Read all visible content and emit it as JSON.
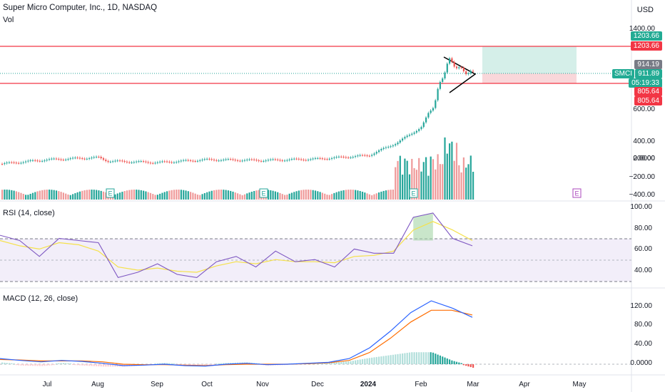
{
  "header": {
    "title": "Super Micro Computer, Inc., 1D, NASDAQ",
    "vol_label": "Vol",
    "currency": "USD"
  },
  "colors": {
    "up": "#26a69a",
    "down": "#ef9a9a",
    "resistance": "#f23645",
    "support": "#f23645",
    "rsi": "#7e57c2",
    "rsi_ma": "#f5e14a",
    "macd": "#2962ff",
    "signal": "#ff6d00"
  },
  "price_tags": [
    {
      "label": "1203.66",
      "color": "#22ab94"
    },
    {
      "label": "1203.66",
      "color": "#f23645"
    },
    {
      "label": "914.19",
      "color": "#787b86"
    },
    {
      "label": "911.89",
      "color": "#22ab94"
    },
    {
      "label": "05:19:33",
      "color": "#22ab94"
    },
    {
      "label": "805.64",
      "color": "#f23645"
    },
    {
      "label": "805.64",
      "color": "#f23645"
    }
  ],
  "ticker_label": "SMCI",
  "earnings_marker": "E",
  "panels": {
    "rsi_label": "RSI (14, close)",
    "macd_label": "MACD (12, 26, close)"
  },
  "chart_data": [
    {
      "type": "candlestick",
      "title": "Super Micro Computer, Inc., 1D, NASDAQ",
      "x_ticks": [
        "Jul",
        "Aug",
        "Sep",
        "Oct",
        "Nov",
        "Dec",
        "2024",
        "Feb",
        "Mar",
        "Apr",
        "May"
      ],
      "y_ticks": [
        1400,
        600,
        400,
        200,
        0,
        -200,
        -400
      ],
      "y_tick_labels": [
        "1400.00",
        "600.00",
        "400.00",
        "200.00",
        "0.0000",
        "−200.00",
        "−400.00"
      ],
      "horizontal_levels": [
        1203.66,
        805.64
      ],
      "last_price": 911.89,
      "series": [
        {
          "name": "Close (approx.)",
          "points": [
            [
              "Jun",
              240
            ],
            [
              "Jul",
              270
            ],
            [
              "Aug",
              285
            ],
            [
              "Aug",
              260
            ],
            [
              "Sep",
              250
            ],
            [
              "Oct",
              270
            ],
            [
              "Nov",
              265
            ],
            [
              "Dec",
              275
            ],
            [
              "2024",
              300
            ],
            [
              "Jan",
              390
            ],
            [
              "Feb",
              500
            ],
            [
              "Feb",
              700
            ],
            [
              "Feb",
              1050
            ],
            [
              "Feb",
              930
            ],
            [
              "Mar",
              912
            ]
          ]
        }
      ]
    },
    {
      "type": "line",
      "title": "RSI (14, close)",
      "y_ticks": [
        100,
        80,
        60,
        40
      ],
      "y_tick_labels": [
        "100.00",
        "80.00",
        "60.00",
        "40.00"
      ],
      "bands": [
        70,
        50,
        30
      ],
      "series": [
        {
          "name": "RSI",
          "values": [
            75,
            70,
            55,
            72,
            70,
            68,
            35,
            40,
            48,
            38,
            35,
            50,
            55,
            45,
            60,
            50,
            52,
            45,
            62,
            58,
            58,
            92,
            96,
            72,
            65
          ]
        },
        {
          "name": "RSI MA",
          "values": [
            70,
            65,
            62,
            68,
            66,
            60,
            45,
            42,
            44,
            41,
            40,
            46,
            50,
            48,
            52,
            50,
            50,
            49,
            55,
            56,
            60,
            80,
            88,
            80,
            70
          ]
        }
      ]
    },
    {
      "type": "line",
      "title": "MACD (12, 26, close)",
      "y_ticks": [
        120,
        80,
        40,
        0
      ],
      "y_tick_labels": [
        "120.00",
        "80.00",
        "40.00",
        "0.0000"
      ],
      "series": [
        {
          "name": "MACD",
          "values": [
            12,
            8,
            5,
            8,
            6,
            2,
            -3,
            -2,
            0,
            -3,
            -4,
            0,
            2,
            -1,
            0,
            2,
            4,
            12,
            35,
            70,
            110,
            135,
            120,
            100
          ]
        },
        {
          "name": "Signal",
          "values": [
            10,
            9,
            7,
            7,
            7,
            5,
            0,
            -1,
            -1,
            -2,
            -3,
            -1,
            0,
            0,
            0,
            1,
            3,
            8,
            25,
            55,
            90,
            115,
            115,
            105
          ]
        }
      ]
    }
  ]
}
